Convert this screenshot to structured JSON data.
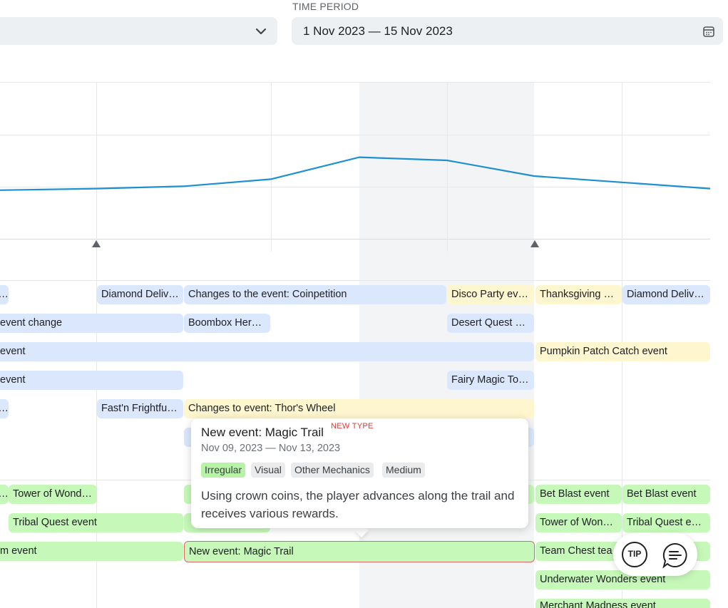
{
  "filters": {
    "period_label": "TIME PERIOD",
    "period_value": "1 Nov 2023 — 15 Nov 2023"
  },
  "icons": {
    "dropdown": "chevron-down-icon",
    "calendar": "calendar-icon",
    "tip": "tip-icon",
    "chat": "chat-icon"
  },
  "colors": {
    "line": "#1e8fd2",
    "blue_event": "#dbe7fd",
    "yellow_event": "#fdf6cf",
    "green_event": "#c6f8b9",
    "new_type": "#e53935"
  },
  "chart_data": {
    "type": "line",
    "series": [
      {
        "values": [
          0.31,
          0.32,
          0.335,
          0.38,
          0.52,
          0.5,
          0.4,
          0.36,
          0.32
        ]
      }
    ],
    "ylim": [
      0,
      1
    ],
    "grid": true,
    "note_markers": [
      1,
      6
    ]
  },
  "events": {
    "row1": [
      "...",
      "Diamond Delive...",
      "Changes to the event: Coinpetition",
      "Disco Party eve...",
      "Thanksgiving P...",
      "Diamond Deliver..."
    ],
    "row2": [
      "event change",
      "Boombox Hero ...",
      "Desert Quest ev..."
    ],
    "row3": [
      "event",
      "Pumpkin Patch Catch event"
    ],
    "row4": [
      "event",
      "Fairy Magic Tou..."
    ],
    "row5": [
      "...",
      "Fast'n Frightful ...",
      "Changes to event: Thor's Wheel"
    ],
    "row7": [
      "...",
      "Tower of Wonde...",
      "Bet Blast event",
      "Bet Blast event"
    ],
    "row8": [
      "Tribal Quest event",
      "Tower of Wonde...",
      "Tribal Quest event"
    ],
    "row9": [
      "m event",
      "New event: Magic Trail",
      "Team Chest tea"
    ],
    "row10": [
      "Underwater Wonders event"
    ],
    "row11": [
      "Merchant Madness event"
    ]
  },
  "tooltip": {
    "title": "New event: Magic Trail",
    "badge": "NEW TYPE",
    "dates": "Nov 09, 2023 — Nov 13, 2023",
    "tags": [
      "Irregular",
      "Visual",
      "Other Mechanics",
      "Medium"
    ],
    "description": "Using crown coins, the player advances along the trail and receives various rewards."
  },
  "fab": {
    "tip_label": "TIP"
  }
}
